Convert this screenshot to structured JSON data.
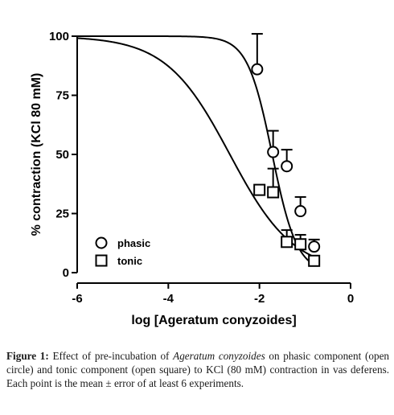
{
  "chart_data": {
    "type": "scatter",
    "xlabel": "log [Ageratum conyzoides]",
    "ylabel": "% contraction (KCl 80 mM)",
    "xlim": [
      -6,
      0
    ],
    "ylim": [
      0,
      100
    ],
    "xticks": [
      -6,
      -4,
      -2,
      0
    ],
    "yticks": [
      0,
      25,
      50,
      75,
      100
    ],
    "legend": "bottom-left",
    "series": [
      {
        "name": "phasic",
        "marker": "circle",
        "x": [
          -2.05,
          -1.7,
          -1.4,
          -1.1,
          -0.8
        ],
        "y": [
          86,
          51,
          45,
          26,
          11
        ],
        "err": [
          15,
          9,
          7,
          6,
          3
        ],
        "fit": {
          "top": 100,
          "bottom": 0,
          "log_ec50": -1.72,
          "hill": 1.6
        }
      },
      {
        "name": "tonic",
        "marker": "square",
        "x": [
          -2.0,
          -1.7,
          -1.4,
          -1.1,
          -0.8
        ],
        "y": [
          35,
          34,
          13,
          12,
          5
        ],
        "err": [
          0,
          10,
          5,
          4,
          0
        ],
        "fit": {
          "top": 100,
          "bottom": 0,
          "log_ec50": -2.65,
          "hill": 0.62
        }
      }
    ]
  },
  "caption": {
    "figure_label": "Figure 1:",
    "text_before_species": "Effect of pre-incubation of",
    "species": "Ageratum conyzoides",
    "text_after_species": "on phasic component (open circle) and tonic component (open square) to KCl (80 mM) contraction in vas deferens. Each point is the mean ± error of at least 6 experiments."
  }
}
